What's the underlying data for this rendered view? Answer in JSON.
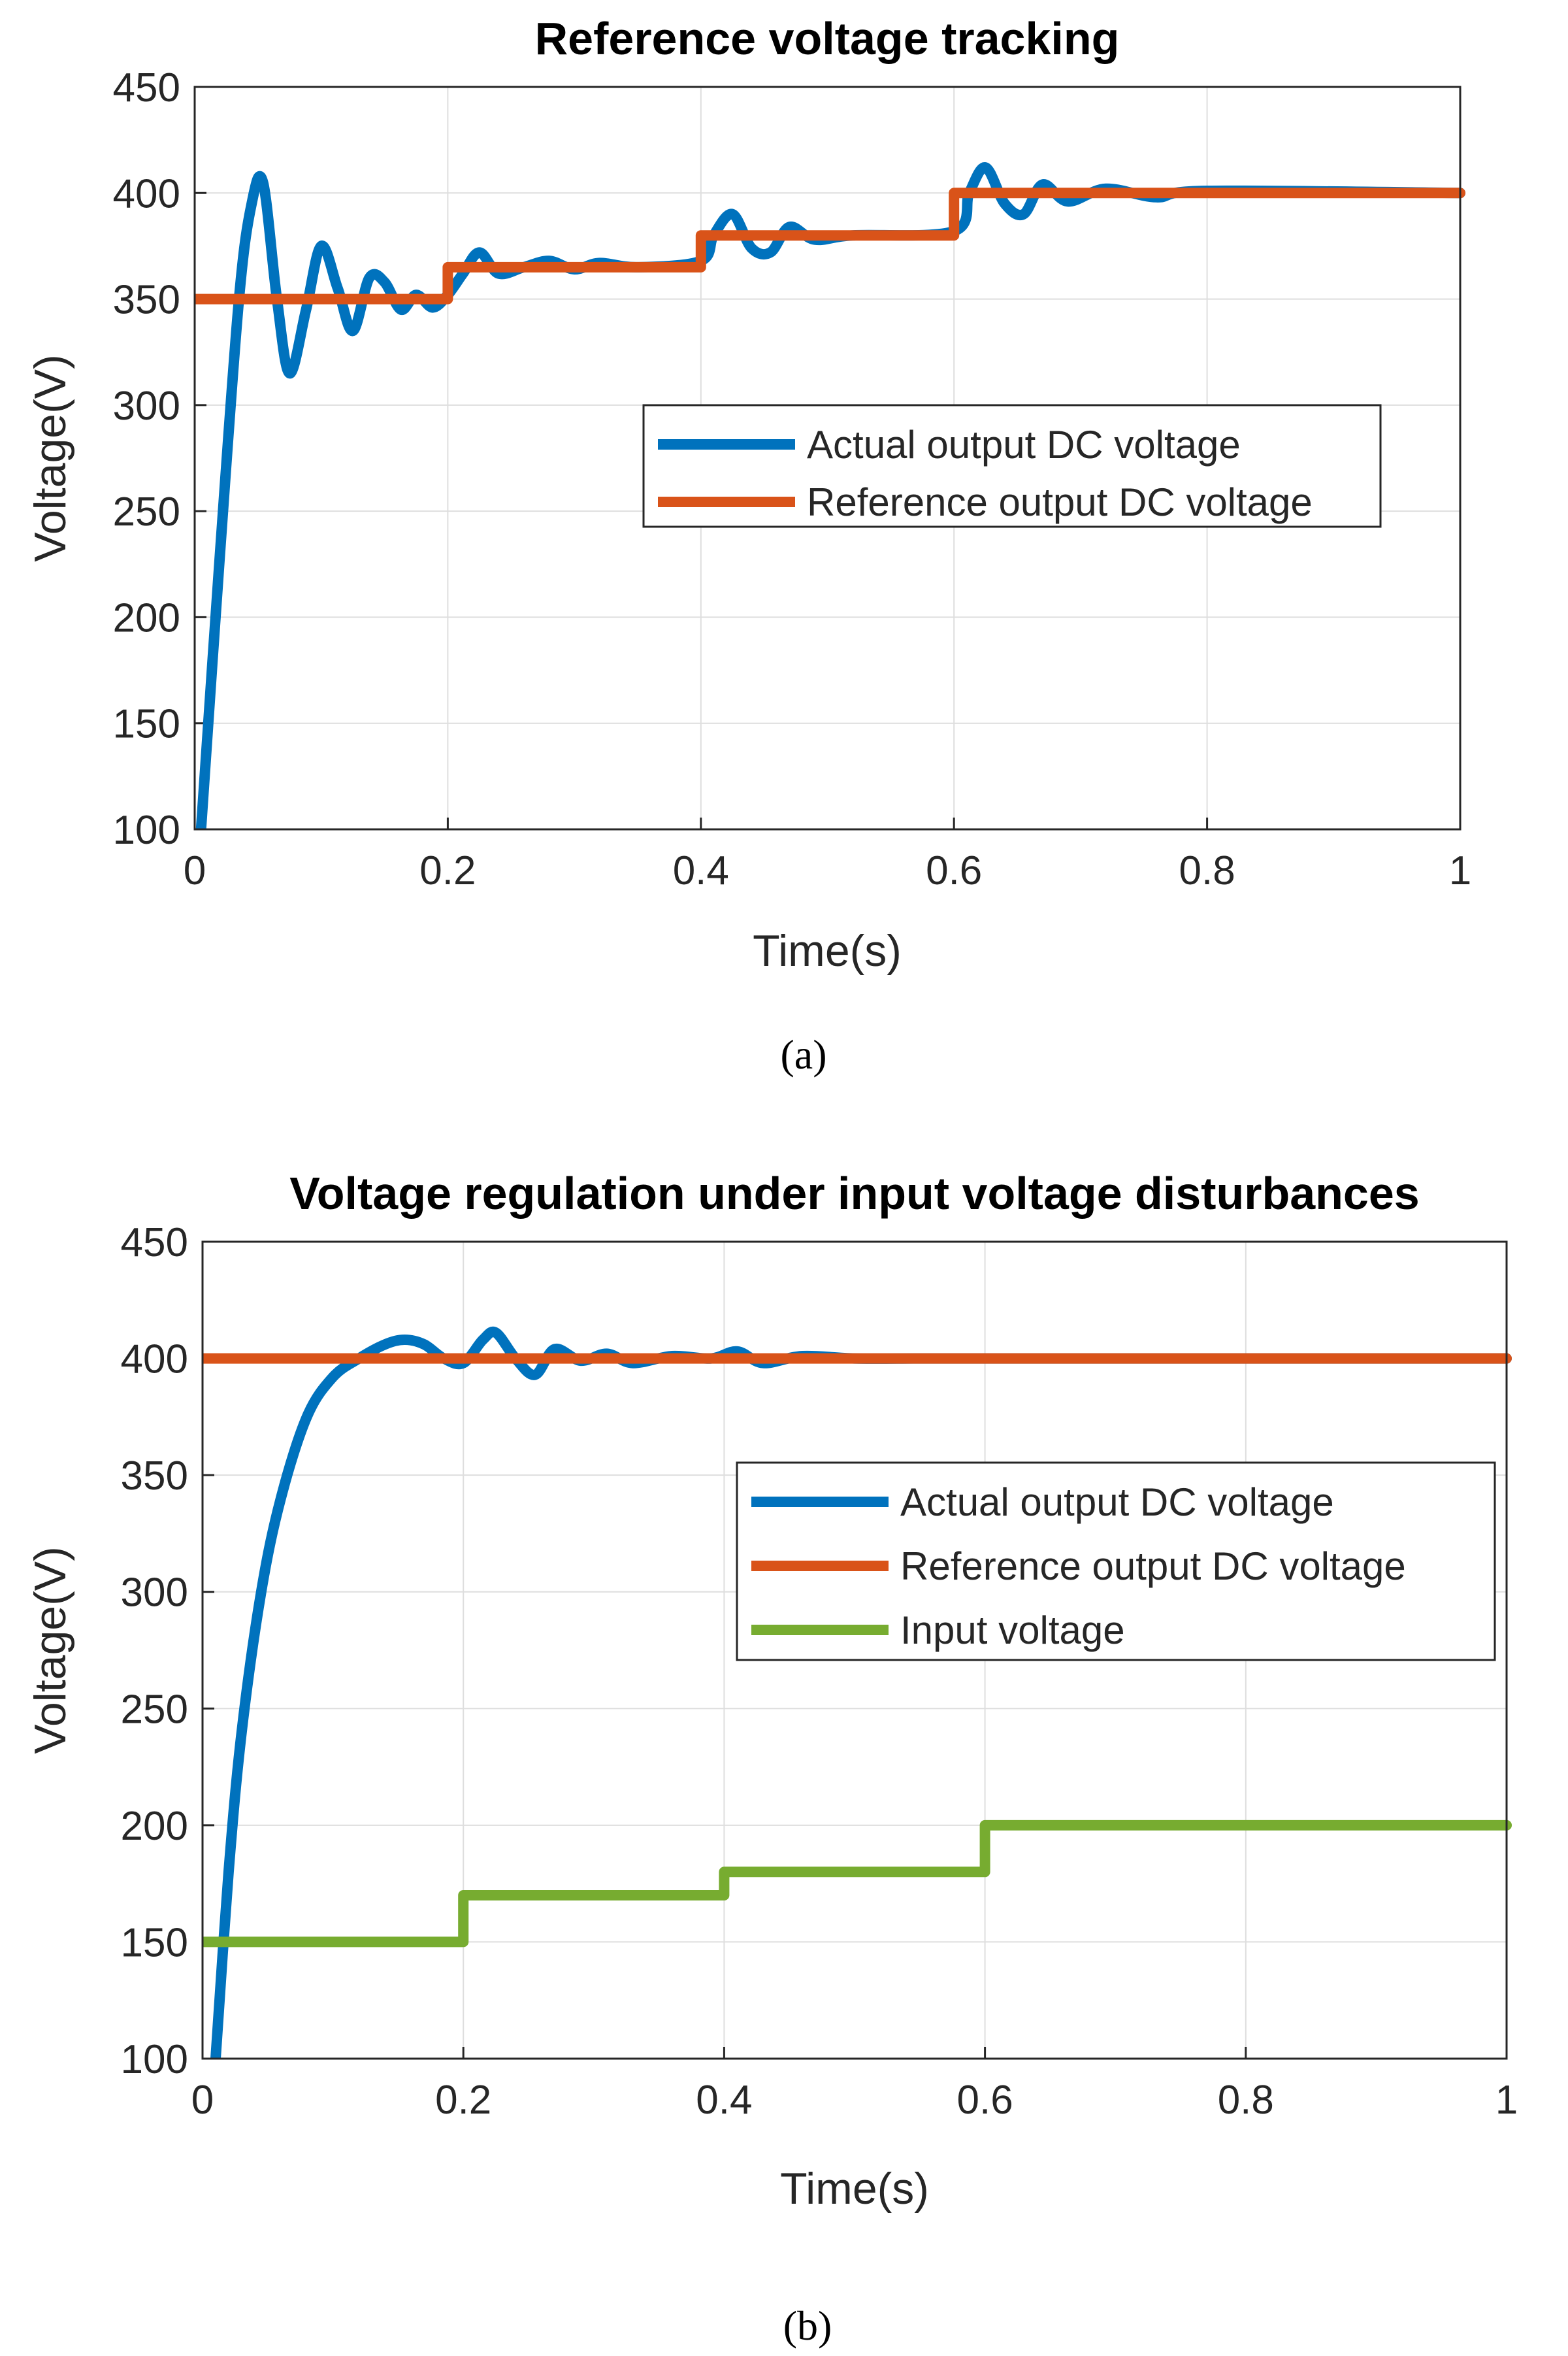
{
  "chart_data": [
    {
      "type": "line",
      "panel_label": "a",
      "title": "Reference voltage tracking",
      "xlabel": "Time(s)",
      "ylabel": "Voltage(V)",
      "xlim": [
        0,
        1
      ],
      "ylim": [
        100,
        450
      ],
      "xticks": [
        "0",
        "0.2",
        "0.4",
        "0.6",
        "0.8",
        "1"
      ],
      "yticks": [
        "100",
        "150",
        "200",
        "250",
        "300",
        "350",
        "400",
        "450"
      ],
      "grid": true,
      "legend_position": "center-right",
      "series": [
        {
          "name": "Actual output DC voltage",
          "color": "#0072BD",
          "x": [
            0.005,
            0.02,
            0.035,
            0.045,
            0.054,
            0.065,
            0.075,
            0.088,
            0.1,
            0.113,
            0.125,
            0.138,
            0.15,
            0.163,
            0.175,
            0.188,
            0.2,
            0.212,
            0.225,
            0.24,
            0.26,
            0.28,
            0.3,
            0.32,
            0.35,
            0.4,
            0.41,
            0.425,
            0.44,
            0.455,
            0.47,
            0.49,
            0.52,
            0.6,
            0.612,
            0.625,
            0.64,
            0.655,
            0.67,
            0.69,
            0.72,
            0.76,
            0.8,
            1.0
          ],
          "y": [
            100,
            230,
            350,
            395,
            405,
            350,
            315,
            345,
            375,
            355,
            335,
            360,
            358,
            345,
            352,
            346,
            352,
            362,
            372,
            362,
            365,
            368,
            364,
            367,
            365,
            368,
            380,
            390,
            374,
            372,
            384,
            378,
            380,
            382,
            400,
            412,
            395,
            390,
            404,
            396,
            402,
            398,
            401,
            400
          ]
        },
        {
          "name": "Reference output DC voltage",
          "color": "#D95319",
          "x": [
            0,
            0.2,
            0.2,
            0.4,
            0.4,
            0.6,
            0.6,
            1.0
          ],
          "y": [
            350,
            350,
            365,
            365,
            380,
            380,
            400,
            400
          ]
        }
      ]
    },
    {
      "type": "line",
      "panel_label": "b",
      "title": "Voltage regulation under input voltage disturbances",
      "xlabel": "Time(s)",
      "ylabel": "Voltage(V)",
      "xlim": [
        0,
        1
      ],
      "ylim": [
        100,
        450
      ],
      "xticks": [
        "0",
        "0.2",
        "0.4",
        "0.6",
        "0.8",
        "1"
      ],
      "yticks": [
        "100",
        "150",
        "200",
        "250",
        "300",
        "350",
        "400",
        "450"
      ],
      "grid": true,
      "legend_position": "center-right",
      "series": [
        {
          "name": "Actual output DC voltage",
          "color": "#0072BD",
          "x": [
            0.01,
            0.02,
            0.03,
            0.045,
            0.06,
            0.08,
            0.1,
            0.12,
            0.14,
            0.155,
            0.17,
            0.185,
            0.2,
            0.215,
            0.225,
            0.24,
            0.255,
            0.27,
            0.29,
            0.31,
            0.33,
            0.36,
            0.39,
            0.41,
            0.43,
            0.46,
            0.5,
            0.55,
            0.6,
            1.0
          ],
          "y": [
            100,
            180,
            240,
            300,
            340,
            375,
            392,
            400,
            406,
            408,
            406,
            400,
            398,
            408,
            411,
            400,
            393,
            404,
            399,
            402,
            398,
            401,
            400,
            403,
            398,
            401,
            400,
            400,
            400,
            400
          ]
        },
        {
          "name": "Reference output DC voltage",
          "color": "#D95319",
          "x": [
            0,
            1.0
          ],
          "y": [
            400,
            400
          ]
        },
        {
          "name": "Input voltage",
          "color": "#77AC30",
          "x": [
            0,
            0.2,
            0.2,
            0.4,
            0.4,
            0.6,
            0.6,
            1.0
          ],
          "y": [
            150,
            150,
            170,
            170,
            180,
            180,
            200,
            200
          ]
        }
      ]
    }
  ],
  "captions": [
    "(a)",
    "(b)"
  ]
}
